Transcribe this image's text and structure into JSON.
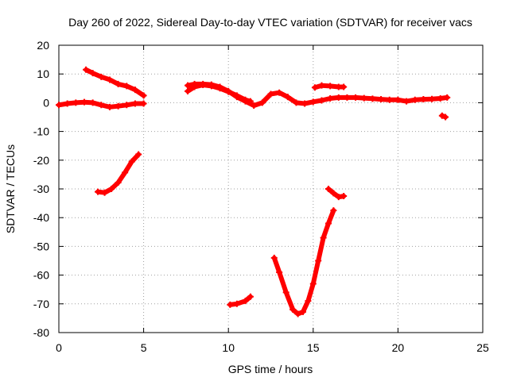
{
  "chart_data": {
    "type": "line",
    "title": "Day 260 of 2022, Sidereal Day-to-day VTEC variation (SDTVAR) for receiver vacs",
    "xlabel": "GPS time / hours",
    "ylabel": "SDTVAR / TECUs",
    "xlim": [
      0,
      25
    ],
    "ylim": [
      -80,
      20
    ],
    "xticks": [
      0,
      5,
      10,
      15,
      20,
      25
    ],
    "yticks": [
      20,
      10,
      0,
      -10,
      -20,
      -30,
      -40,
      -50,
      -60,
      -70,
      -80
    ],
    "grid": true,
    "color": "#ff0000",
    "series": [
      {
        "name": "seg1",
        "x": [
          0,
          0.5,
          1,
          1.5,
          2,
          2.5,
          3,
          3.5,
          4,
          4.5,
          5
        ],
        "y": [
          -0.8,
          -0.3,
          0,
          0.2,
          0,
          -0.8,
          -1.5,
          -1.2,
          -0.8,
          -0.3,
          -0.3
        ]
      },
      {
        "name": "seg2",
        "x": [
          1.6,
          2,
          2.5,
          3,
          3.5,
          4,
          4.5,
          5
        ],
        "y": [
          11.5,
          10.3,
          9,
          8,
          6.5,
          5.8,
          4.5,
          2.5
        ]
      },
      {
        "name": "seg3",
        "x": [
          2.3,
          2.7,
          3.1,
          3.5,
          3.9,
          4.3,
          4.7
        ],
        "y": [
          -31,
          -31.3,
          -30,
          -27.8,
          -24.3,
          -20.5,
          -18
        ]
      },
      {
        "name": "seg4",
        "x": [
          7.6,
          8,
          8.5,
          9,
          9.5,
          10,
          10.5,
          11,
          11.5,
          12,
          12.5,
          13,
          13.5,
          14,
          14.5,
          15,
          15.5,
          16,
          16.5,
          17,
          17.5,
          18,
          18.5,
          19,
          19.5,
          20,
          20.5,
          21,
          21.5,
          22,
          22.5,
          22.9
        ],
        "y": [
          6,
          6.5,
          6.5,
          6.3,
          5.5,
          4,
          2,
          0.5,
          -1,
          0,
          3,
          3.5,
          2,
          0,
          -0.3,
          0.3,
          0.8,
          1.5,
          1.8,
          1.8,
          1.8,
          1.6,
          1.4,
          1.2,
          1,
          1,
          0.5,
          1,
          1.2,
          1.3,
          1.5,
          1.8
        ]
      },
      {
        "name": "seg5",
        "x": [
          7.6,
          8,
          8.5,
          9,
          9.5,
          10,
          10.5,
          11,
          11.3
        ],
        "y": [
          4,
          5.5,
          6.2,
          5.8,
          5,
          3.8,
          2.5,
          1,
          0.5
        ]
      },
      {
        "name": "seg6",
        "x": [
          15.1,
          15.5,
          16,
          16.5,
          16.8
        ],
        "y": [
          5.3,
          6,
          5.8,
          5.5,
          5.5
        ]
      },
      {
        "name": "seg7",
        "x": [
          22.6,
          22.8
        ],
        "y": [
          -4.5,
          -5
        ]
      },
      {
        "name": "seg8",
        "x": [
          10.1,
          10.5,
          11,
          11.3
        ],
        "y": [
          -70.3,
          -70,
          -69,
          -67.5
        ]
      },
      {
        "name": "seg9",
        "x": [
          12.7,
          13,
          13.4,
          13.8,
          14.1,
          14.4,
          14.7,
          15,
          15.3,
          15.6,
          15.9,
          16.2
        ],
        "y": [
          -54,
          -59,
          -66,
          -72,
          -73.5,
          -72.8,
          -69,
          -63,
          -55,
          -47,
          -42,
          -37.5
        ]
      },
      {
        "name": "seg10",
        "x": [
          15.9,
          16.2,
          16.5,
          16.8
        ],
        "y": [
          -30,
          -31.5,
          -32.8,
          -32.5
        ]
      }
    ]
  }
}
